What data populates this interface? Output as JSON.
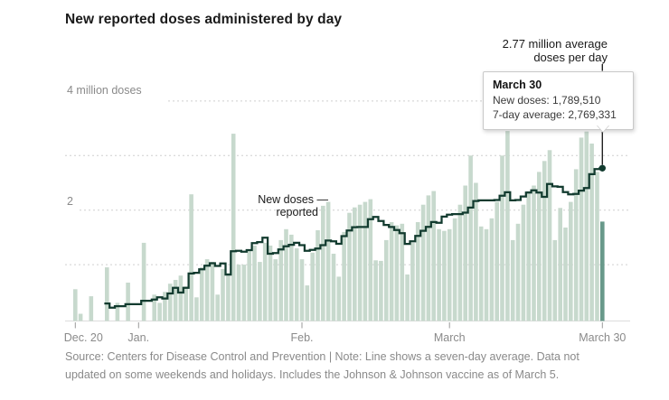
{
  "title": "New reported doses administered by day",
  "annotations": {
    "avg_line1": "2.77 million average",
    "avg_line2": "doses per day",
    "new_doses_line1": "New doses —",
    "new_doses_line2": "reported"
  },
  "tooltip": {
    "date": "March 30",
    "new_doses": "New doses: 1,789,510",
    "seven_day_average": "7-day average: 2,769,331"
  },
  "axis": {
    "y_label_top": "4 million doses",
    "y_label_mid": "2",
    "x_ticks": [
      {
        "label": "Dec. 20",
        "day_index": 0,
        "dx": 9
      },
      {
        "label": "Jan.",
        "day_index": 12,
        "dx": 0
      },
      {
        "label": "Feb.",
        "day_index": 43,
        "dx": 0
      },
      {
        "label": "March",
        "day_index": 71,
        "dx": 0
      },
      {
        "label": "March 30",
        "day_index": 100,
        "dx": 0
      }
    ]
  },
  "source": {
    "line1": "Source: Centers for Disease Control and Prevention | Note: Line shows a seven-day average. Data not",
    "line2": "updated on some weekends and holidays. Includes the Johnson & Johnson vaccine as of March 5."
  },
  "colors": {
    "bar": "#c7d9cd",
    "bar_highlight": "#68998a",
    "line": "#123b2f",
    "grid": "#cfcfcf",
    "baseline": "#dddddd",
    "tick": "#999999",
    "leader": "#222222",
    "axis_text": "#8a8a8a"
  },
  "chart_data": {
    "type": "bar",
    "title": "New reported doses administered by day",
    "unit": "million doses",
    "start_label": "Dec. 20",
    "end_label": "March 30",
    "ylim": [
      0,
      4.6
    ],
    "gridlines_millions": [
      1,
      2,
      3,
      4
    ],
    "grid_dashed": true,
    "line_note": "Dark step line = trailing 7-day average computed from daily values, starting at day index 6",
    "highlight_index": 100,
    "highlight_date": "March 30",
    "highlight_new_doses": 1789510,
    "highlight_seven_day_average": 2769331,
    "values_millions": [
      0.55,
      0.1,
      0,
      0.42,
      0,
      0,
      0.95,
      0,
      0.3,
      0,
      0.67,
      0,
      0,
      1.4,
      0,
      0.45,
      0.3,
      0.5,
      0.65,
      0.72,
      0.8,
      0.6,
      2.29,
      0.4,
      0.95,
      1.1,
      1.05,
      0.45,
      0.92,
      0.85,
      3.4,
      1.0,
      1.0,
      1.25,
      1.35,
      1.05,
      1.4,
      1.35,
      1.1,
      1.45,
      1.65,
      1.55,
      1.3,
      1.1,
      0.62,
      1.22,
      1.63,
      2.08,
      2.15,
      1.2,
      0.78,
      1.6,
      1.95,
      2.05,
      2.1,
      2.15,
      2.2,
      1.08,
      1.07,
      1.45,
      1.78,
      1.72,
      1.75,
      0.82,
      1.4,
      1.78,
      2.1,
      2.27,
      2.35,
      1.65,
      1.62,
      1.65,
      1.85,
      2.1,
      2.45,
      3.0,
      2.5,
      1.7,
      1.65,
      1.85,
      2.15,
      3.0,
      3.45,
      1.45,
      1.75,
      2.1,
      2.35,
      2.45,
      2.7,
      2.9,
      3.1,
      1.45,
      2.04,
      1.68,
      2.15,
      2.75,
      3.33,
      3.44,
      3.22,
      2.7,
      1.79
    ]
  }
}
